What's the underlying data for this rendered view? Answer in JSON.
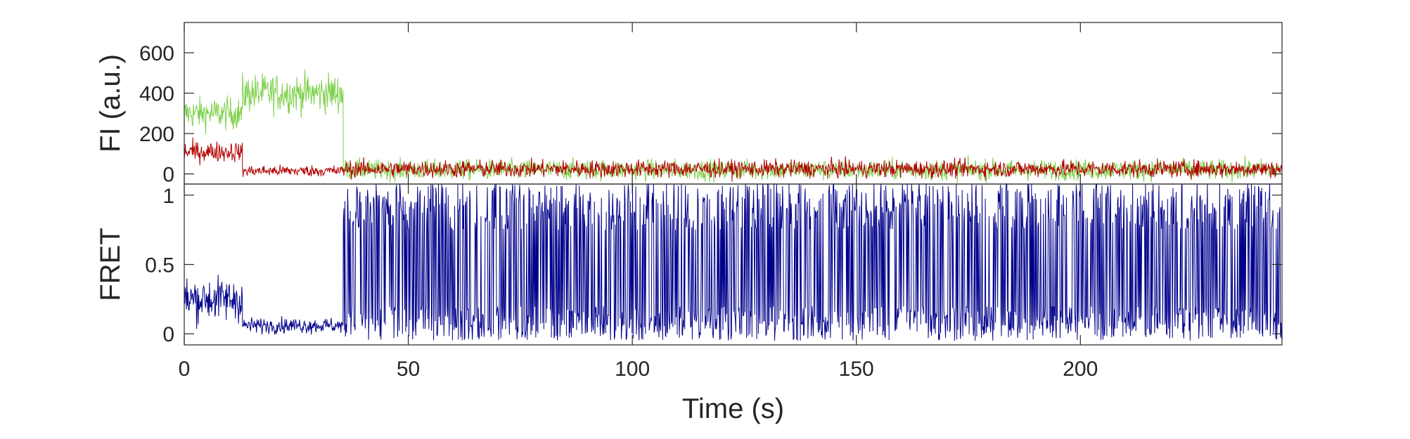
{
  "chart_data": [
    {
      "type": "line",
      "panel": "top",
      "ylabel": "FI (a.u.)",
      "xlim": [
        0,
        245
      ],
      "ylim": [
        -50,
        750
      ],
      "yticks": [
        0,
        200,
        400,
        600
      ],
      "ytick_labels": [
        "0",
        "200",
        "400",
        "600"
      ],
      "grid": false,
      "series": [
        {
          "color": "#7ed04b",
          "segments": [
            {
              "x_start": 0,
              "x_end": 13,
              "level": 300,
              "noise": 70
            },
            {
              "x_start": 13,
              "x_end": 35.5,
              "level": 400,
              "noise": 85
            },
            {
              "x_start": 35.5,
              "x_end": 245,
              "level": 20,
              "noise": 45
            }
          ]
        },
        {
          "color": "#b30000",
          "segments": [
            {
              "x_start": 0,
              "x_end": 13,
              "level": 110,
              "noise": 45
            },
            {
              "x_start": 13,
              "x_end": 35.5,
              "level": 15,
              "noise": 25
            },
            {
              "x_start": 35.5,
              "x_end": 245,
              "level": 25,
              "noise": 38
            }
          ]
        }
      ]
    },
    {
      "type": "line",
      "panel": "bottom",
      "ylabel": "FRET",
      "xlabel": "Time (s)",
      "xlim": [
        0,
        245
      ],
      "ylim": [
        -0.08,
        1.08
      ],
      "yticks": [
        0,
        0.5,
        1
      ],
      "ytick_labels": [
        "0",
        "0.5",
        "1"
      ],
      "xticks": [
        0,
        50,
        100,
        150,
        200
      ],
      "xtick_labels": [
        "0",
        "50",
        "100",
        "150",
        "200"
      ],
      "grid": false,
      "series": [
        {
          "color": "#00008b",
          "segments": [
            {
              "x_start": 0,
              "x_end": 13,
              "level": 0.25,
              "noise": 0.14
            },
            {
              "x_start": 13,
              "x_end": 35.5,
              "level": 0.06,
              "noise": 0.05
            },
            {
              "x_start": 35.5,
              "x_end": 245,
              "level": 0.5,
              "noise": 0.55
            }
          ]
        }
      ]
    }
  ]
}
